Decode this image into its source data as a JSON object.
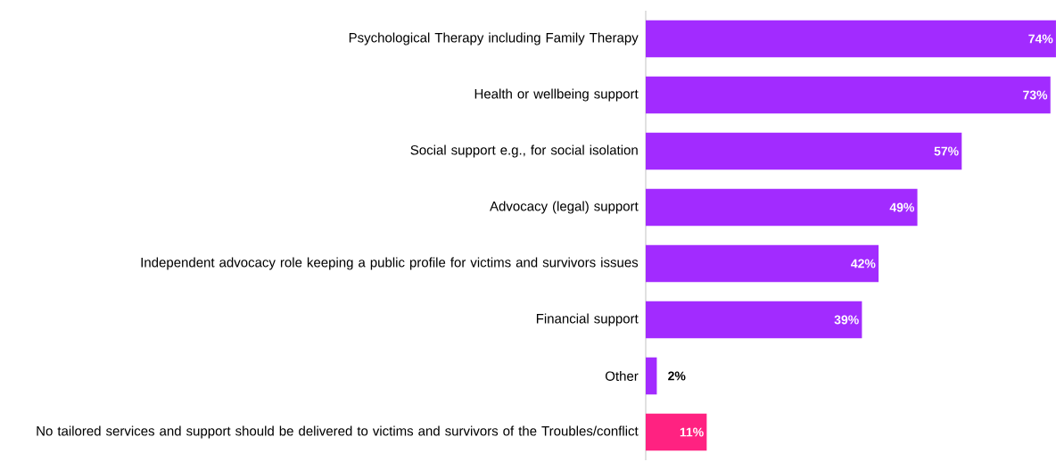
{
  "chart_data": {
    "type": "bar",
    "orientation": "horizontal",
    "categories": [
      "Psychological Therapy including Family Therapy",
      "Health or wellbeing support",
      "Social support e.g., for social isolation",
      "Advocacy (legal) support",
      "Independent advocacy role keeping a public profile for victims and survivors issues",
      "Financial support",
      "Other",
      "No tailored services and support should be delivered to victims and survivors of the Troubles/conflict"
    ],
    "values": [
      74,
      73,
      57,
      49,
      42,
      39,
      2,
      11
    ],
    "colors": [
      "#a22bff",
      "#a22bff",
      "#a22bff",
      "#a22bff",
      "#a22bff",
      "#a22bff",
      "#a22bff",
      "#ff2281"
    ],
    "value_labels": [
      "74%",
      "73%",
      "57%",
      "49%",
      "42%",
      "39%",
      "2%",
      "11%"
    ]
  }
}
